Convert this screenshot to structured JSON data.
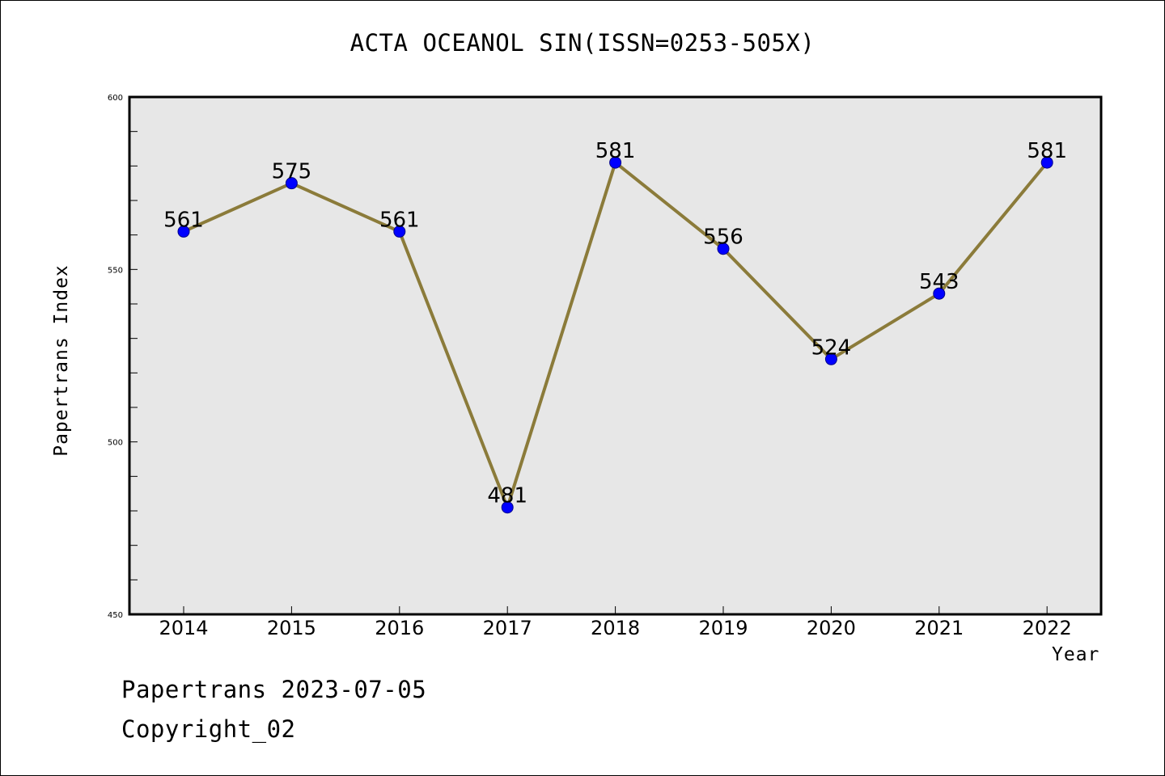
{
  "chart_data": {
    "type": "line",
    "title": "ACTA OCEANOL SIN(ISSN=0253-505X)",
    "xlabel": "Year",
    "ylabel": "Papertrans Index",
    "categories": [
      "2014",
      "2015",
      "2016",
      "2017",
      "2018",
      "2019",
      "2020",
      "2021",
      "2022"
    ],
    "values": [
      561,
      575,
      561,
      481,
      581,
      556,
      524,
      543,
      581
    ],
    "data_labels": [
      "561",
      "575",
      "561",
      "481",
      "581",
      "556",
      "524",
      "543",
      "581"
    ],
    "y_ticks": [
      "450",
      "500",
      "550",
      "600"
    ],
    "ylim": [
      450,
      600
    ],
    "grid": false,
    "colors": {
      "line": "#8b7b3a",
      "marker": "#0000ff",
      "plot_background": "#e7e7e7",
      "frame": "#000000"
    }
  },
  "footer": {
    "line1": "Papertrans 2023-07-05",
    "line2": "Copyright_02"
  }
}
